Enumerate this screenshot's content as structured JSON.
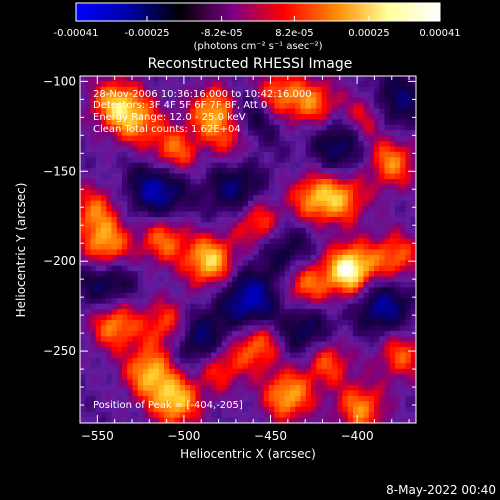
{
  "colorbar": {
    "min": -0.00041,
    "max": 0.00041,
    "tick_values": [
      -0.00041,
      -0.00025,
      -8.2e-05,
      8.2e-05,
      0.00025,
      0.00041
    ],
    "tick_labels": [
      "-0.00041",
      "-0.00025",
      "-8.2e-05",
      "8.2e-05",
      "0.00025",
      "0.00041"
    ],
    "unit_label": "(photons cm⁻² s⁻¹ asec⁻²)",
    "colors": [
      "#0000ff",
      "#0000a8",
      "#000000",
      "#7a0086",
      "#ff0000",
      "#ff8a00",
      "#ffff9a",
      "#ffffff"
    ]
  },
  "chart_data": {
    "type": "heatmap",
    "title": "Reconstructed RHESSI Image",
    "xlabel": "Heliocentric X (arcsec)",
    "ylabel": "Heliocentric Y (arcsec)",
    "xlim": [
      -560,
      -366
    ],
    "ylim": [
      -290,
      -97
    ],
    "x_ticks": [
      -550,
      -500,
      -450,
      -400
    ],
    "x_tick_labels": [
      "−550",
      "−500",
      "−450",
      "−400"
    ],
    "y_ticks": [
      -100,
      -150,
      -200,
      -250
    ],
    "y_tick_labels": [
      "−100",
      "−150",
      "−200",
      "−250"
    ],
    "annotations": [
      "28-Nov-2006 10:36:16.000 to 10:42:16.000",
      "Detectors: 3F 4F 5F 6F 7F 8F, Att 0",
      "Energy Range: 12.0 - 25.0 keV",
      "Clean     Total counts: 1.62E+04"
    ],
    "peak_label": "Position of Peak = [-404,-205]",
    "peak": [
      -404,
      -205
    ],
    "hot_spots": [
      {
        "x": -540,
        "y": -112,
        "v": 0.65
      },
      {
        "x": -527,
        "y": -122,
        "v": 0.55
      },
      {
        "x": -506,
        "y": -140,
        "v": 0.6
      },
      {
        "x": -482,
        "y": -117,
        "v": 0.75
      },
      {
        "x": -470,
        "y": -132,
        "v": 0.55
      },
      {
        "x": -447,
        "y": -108,
        "v": 0.6
      },
      {
        "x": -425,
        "y": -112,
        "v": 0.55
      },
      {
        "x": -395,
        "y": -120,
        "v": 0.5
      },
      {
        "x": -380,
        "y": -145,
        "v": 0.6
      },
      {
        "x": -552,
        "y": -172,
        "v": 0.5
      },
      {
        "x": -545,
        "y": -192,
        "v": 0.7
      },
      {
        "x": -512,
        "y": -188,
        "v": 0.55
      },
      {
        "x": -485,
        "y": -200,
        "v": 0.8
      },
      {
        "x": -458,
        "y": -178,
        "v": 0.55
      },
      {
        "x": -425,
        "y": -165,
        "v": 0.6
      },
      {
        "x": -408,
        "y": -165,
        "v": 0.55
      },
      {
        "x": -404,
        "y": -205,
        "v": 1.0
      },
      {
        "x": -430,
        "y": -213,
        "v": 0.6
      },
      {
        "x": -378,
        "y": -198,
        "v": 0.55
      },
      {
        "x": -540,
        "y": -235,
        "v": 0.65
      },
      {
        "x": -510,
        "y": -235,
        "v": 0.5
      },
      {
        "x": -520,
        "y": -262,
        "v": 0.7
      },
      {
        "x": -505,
        "y": -278,
        "v": 0.75
      },
      {
        "x": -480,
        "y": -258,
        "v": 0.55
      },
      {
        "x": -457,
        "y": -246,
        "v": 0.6
      },
      {
        "x": -440,
        "y": -275,
        "v": 0.7
      },
      {
        "x": -418,
        "y": -255,
        "v": 0.55
      },
      {
        "x": -398,
        "y": -282,
        "v": 0.6
      },
      {
        "x": -375,
        "y": -252,
        "v": 0.5
      }
    ],
    "cold_spots": [
      {
        "x": -515,
        "y": -160,
        "v": 0.7
      },
      {
        "x": -462,
        "y": -122,
        "v": 0.6
      },
      {
        "x": -410,
        "y": -135,
        "v": 0.5
      },
      {
        "x": -378,
        "y": -112,
        "v": 0.5
      },
      {
        "x": -462,
        "y": -222,
        "v": 0.7
      },
      {
        "x": -430,
        "y": -240,
        "v": 0.5
      },
      {
        "x": -490,
        "y": -245,
        "v": 0.6
      },
      {
        "x": -545,
        "y": -212,
        "v": 0.5
      },
      {
        "x": -385,
        "y": -225,
        "v": 0.6
      },
      {
        "x": -470,
        "y": -160,
        "v": 0.5
      },
      {
        "x": -440,
        "y": -195,
        "v": 0.4
      }
    ]
  },
  "footer": {
    "date": "8-May-2022 00:40"
  }
}
